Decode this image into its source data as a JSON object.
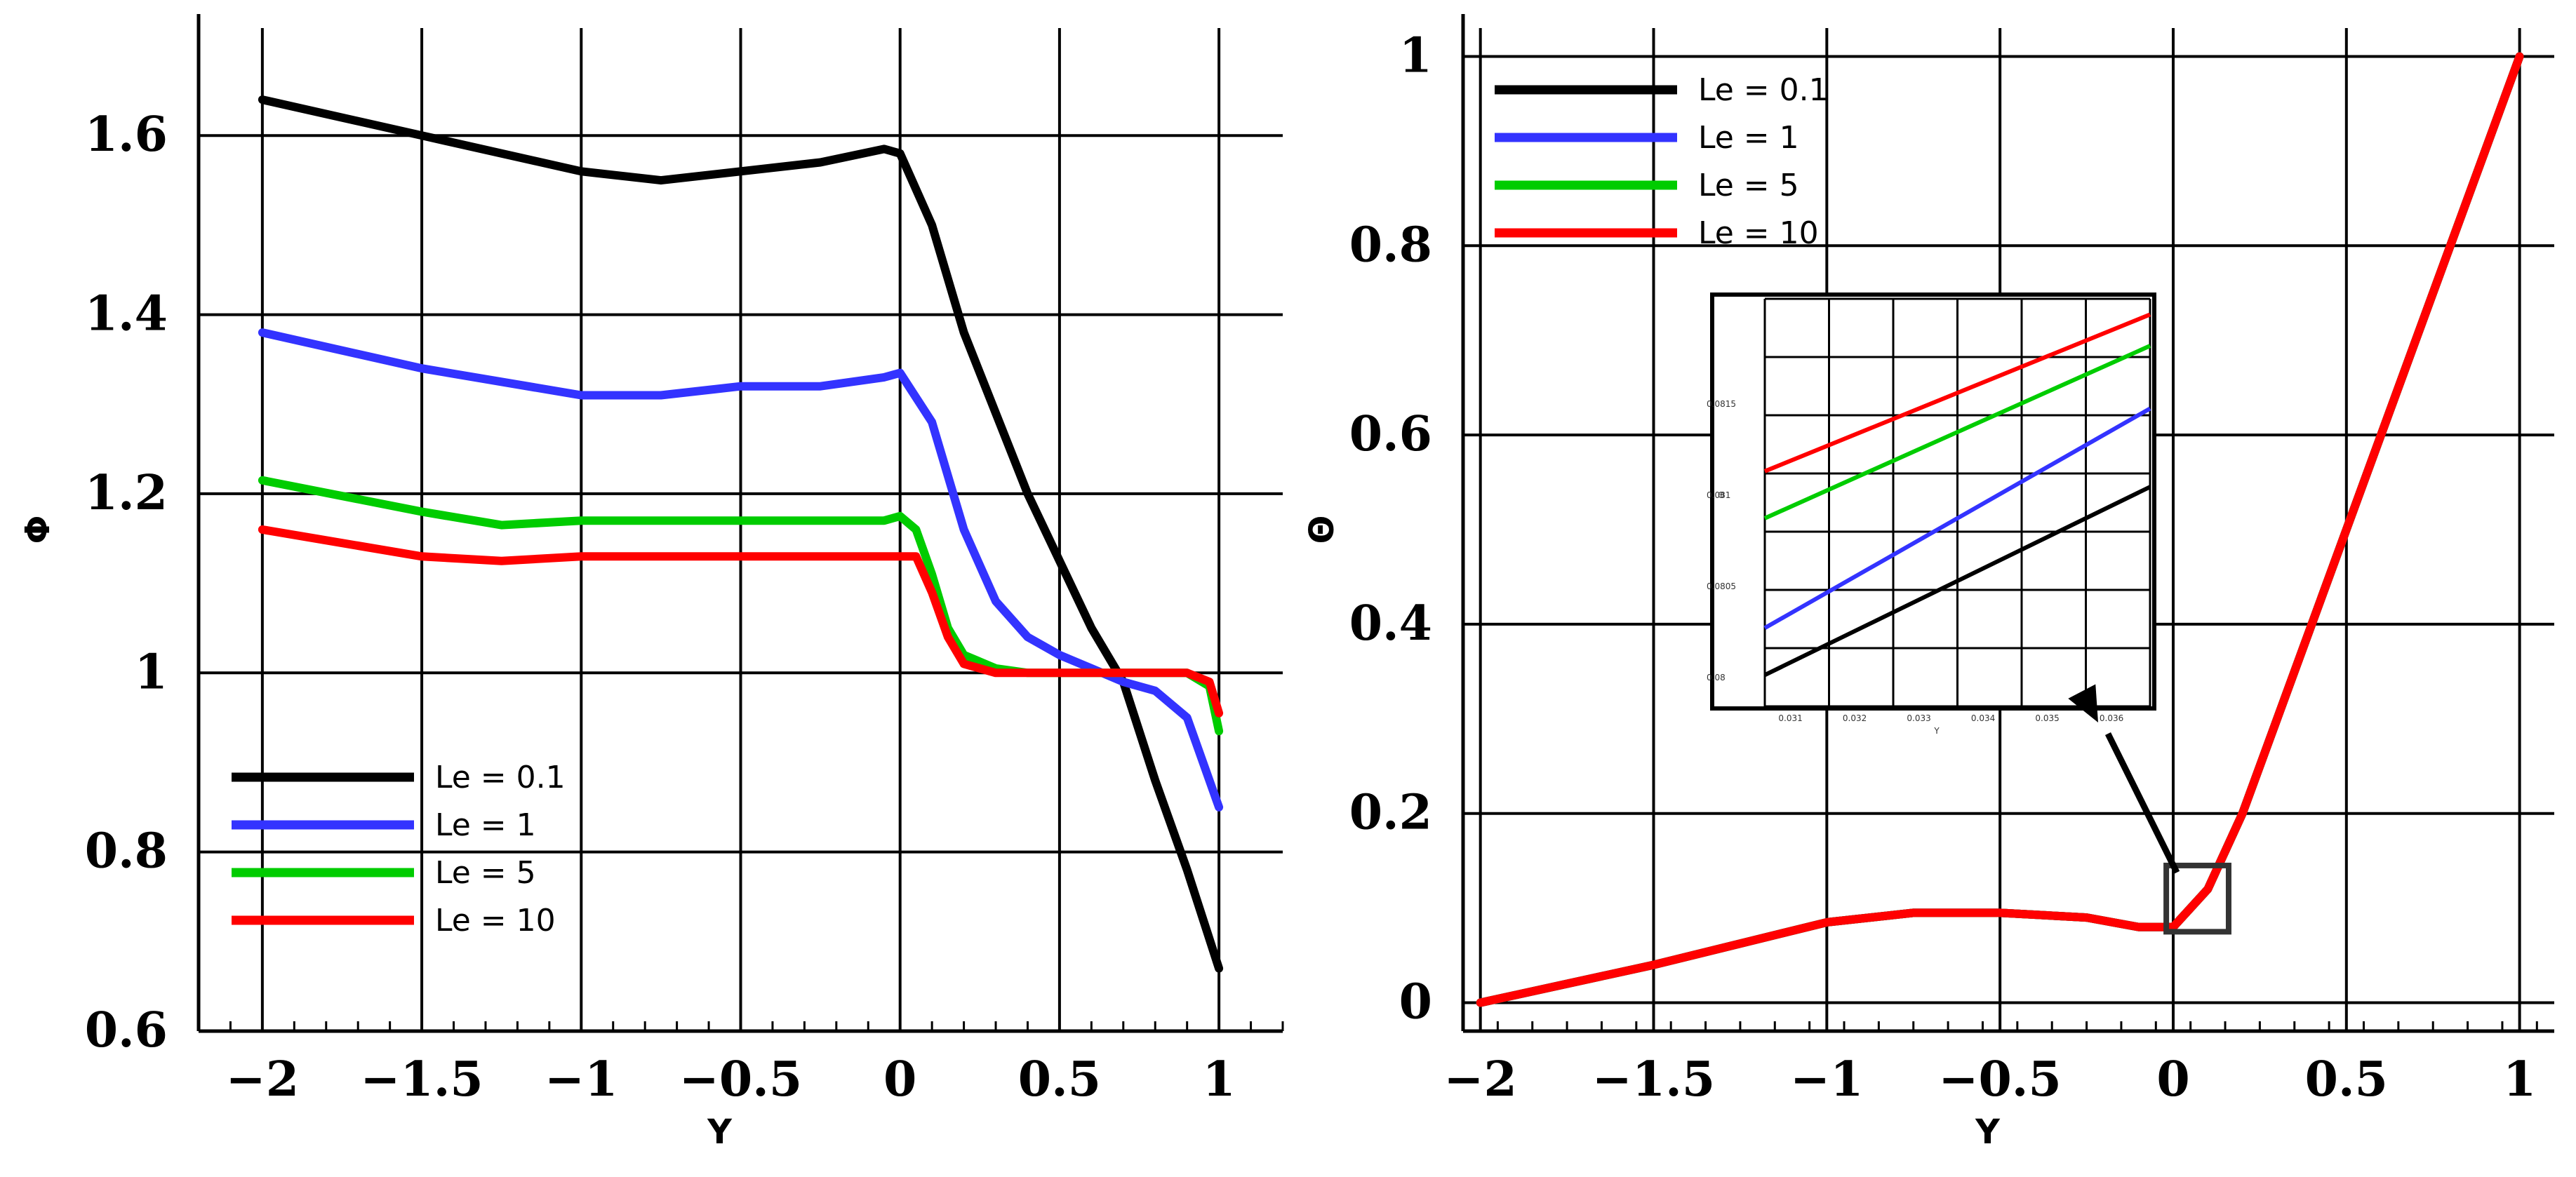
{
  "chart_data": [
    {
      "type": "line",
      "title": "",
      "xlabel": "Y",
      "ylabel": "Φ",
      "xlim": [
        -2.2,
        1.2
      ],
      "ylim": [
        0.6,
        1.72
      ],
      "x_ticks": [
        -2,
        -1.5,
        -1,
        -0.5,
        0,
        0.5,
        1
      ],
      "x_tick_labels": [
        "−2",
        "−1.5",
        "−1",
        "−0.5",
        "0",
        "0.5",
        "1"
      ],
      "y_ticks": [
        0.6,
        0.8,
        1,
        1.2,
        1.4,
        1.6
      ],
      "y_tick_labels": [
        "0.6",
        "0.8",
        "1",
        "1.2",
        "1.4",
        "1.6"
      ],
      "grid": true,
      "legend_position": "bottom-left",
      "series": [
        {
          "name": "Le = 0.1",
          "color": "#000000",
          "x": [
            -2,
            -1.5,
            -1,
            -0.75,
            -0.5,
            -0.25,
            -0.05,
            0,
            0.1,
            0.2,
            0.4,
            0.6,
            0.7,
            0.8,
            0.9,
            1
          ],
          "y": [
            1.64,
            1.6,
            1.56,
            1.55,
            1.56,
            1.57,
            1.585,
            1.58,
            1.5,
            1.38,
            1.2,
            1.05,
            0.99,
            0.88,
            0.78,
            0.67
          ]
        },
        {
          "name": "Le = 1",
          "color": "#3333ff",
          "x": [
            -2,
            -1.5,
            -1,
            -0.75,
            -0.5,
            -0.25,
            -0.05,
            0,
            0.1,
            0.2,
            0.3,
            0.4,
            0.5,
            0.6,
            0.7,
            0.8,
            0.9,
            1
          ],
          "y": [
            1.38,
            1.34,
            1.31,
            1.31,
            1.32,
            1.32,
            1.33,
            1.335,
            1.28,
            1.16,
            1.08,
            1.04,
            1.02,
            1.005,
            0.99,
            0.98,
            0.95,
            0.85
          ]
        },
        {
          "name": "Le = 5",
          "color": "#00cc00",
          "x": [
            -2,
            -1.5,
            -1.25,
            -1,
            -0.5,
            -0.25,
            -0.05,
            0,
            0.05,
            0.1,
            0.15,
            0.2,
            0.3,
            0.4,
            0.6,
            0.8,
            0.9,
            0.97,
            1
          ],
          "y": [
            1.215,
            1.18,
            1.165,
            1.17,
            1.17,
            1.17,
            1.17,
            1.175,
            1.16,
            1.11,
            1.05,
            1.02,
            1.005,
            1.0,
            1.0,
            1.0,
            1.0,
            0.985,
            0.935
          ]
        },
        {
          "name": "Le = 10",
          "color": "#ff0000",
          "x": [
            -2,
            -1.5,
            -1.25,
            -1,
            -0.5,
            -0.25,
            -0.05,
            0,
            0.05,
            0.1,
            0.15,
            0.2,
            0.3,
            0.4,
            0.6,
            0.8,
            0.9,
            0.97,
            1
          ],
          "y": [
            1.16,
            1.13,
            1.125,
            1.13,
            1.13,
            1.13,
            1.13,
            1.13,
            1.13,
            1.09,
            1.04,
            1.01,
            1.0,
            1.0,
            1.0,
            1.0,
            1.0,
            0.99,
            0.955
          ]
        }
      ]
    },
    {
      "type": "line",
      "title": "",
      "xlabel": "Y",
      "ylabel": "Θ",
      "xlim": [
        -2.05,
        1.1
      ],
      "ylim": [
        -0.03,
        1.03
      ],
      "x_ticks": [
        -2,
        -1.5,
        -1,
        -0.5,
        0,
        0.5,
        1
      ],
      "x_tick_labels": [
        "−2",
        "−1.5",
        "−1",
        "−0.5",
        "0",
        "0.5",
        "1"
      ],
      "y_ticks": [
        0,
        0.2,
        0.4,
        0.6,
        0.8,
        1
      ],
      "y_tick_labels": [
        "0",
        "0.2",
        "0.4",
        "0.6",
        "0.8",
        "1"
      ],
      "grid": true,
      "legend_position": "top-left",
      "series": [
        {
          "name": "Le = 0.1",
          "color": "#000000",
          "x": [
            -2,
            -1.5,
            -1,
            -0.75,
            -0.5,
            -0.25,
            -0.1,
            0,
            0.05,
            0.1,
            0.2,
            0.3,
            0.5,
            0.7,
            0.9,
            1
          ],
          "y": [
            0.0,
            0.04,
            0.085,
            0.095,
            0.095,
            0.09,
            0.08,
            0.08,
            0.1,
            0.12,
            0.2,
            0.3,
            0.5,
            0.7,
            0.9,
            1.0
          ]
        },
        {
          "name": "Le = 1",
          "color": "#3333ff",
          "x": [
            -2,
            -1.5,
            -1,
            -0.75,
            -0.5,
            -0.25,
            -0.1,
            0,
            0.05,
            0.1,
            0.2,
            0.3,
            0.5,
            0.7,
            0.9,
            1
          ],
          "y": [
            0.0,
            0.04,
            0.085,
            0.095,
            0.095,
            0.09,
            0.08,
            0.08,
            0.1,
            0.12,
            0.2,
            0.3,
            0.5,
            0.7,
            0.9,
            1.0
          ]
        },
        {
          "name": "Le = 5",
          "color": "#00cc00",
          "x": [
            -2,
            -1.5,
            -1,
            -0.75,
            -0.5,
            -0.25,
            -0.1,
            0,
            0.05,
            0.1,
            0.2,
            0.3,
            0.5,
            0.7,
            0.9,
            1
          ],
          "y": [
            0.0,
            0.04,
            0.085,
            0.095,
            0.095,
            0.09,
            0.08,
            0.08,
            0.1,
            0.12,
            0.2,
            0.3,
            0.5,
            0.7,
            0.9,
            1.0
          ]
        },
        {
          "name": "Le = 10",
          "color": "#ff0000",
          "x": [
            -2,
            -1.5,
            -1,
            -0.75,
            -0.5,
            -0.25,
            -0.1,
            0,
            0.05,
            0.1,
            0.2,
            0.3,
            0.5,
            0.7,
            0.9,
            1
          ],
          "y": [
            0.0,
            0.04,
            0.085,
            0.095,
            0.095,
            0.09,
            0.08,
            0.08,
            0.1,
            0.12,
            0.2,
            0.3,
            0.5,
            0.7,
            0.9,
            1.0
          ]
        }
      ],
      "zoom_box": {
        "x": [
          -0.02,
          0.16
        ],
        "y": [
          0.075,
          0.145
        ]
      },
      "inset": {
        "xlabel": "Y",
        "ylabel": "Θ",
        "x_tick_labels": [
          "0.031",
          "0.032",
          "0.033",
          "0.034",
          "0.035",
          "0.036"
        ],
        "y_tick_labels": [
          "0.08",
          "0.0805",
          "0.081",
          "0.0815"
        ],
        "series": [
          {
            "name": "Le = 0.1",
            "color": "#000000",
            "y0": 0.08,
            "y1": 0.0812
          },
          {
            "name": "Le = 1",
            "color": "#3333ff",
            "y0": 0.0803,
            "y1": 0.0817
          },
          {
            "name": "Le = 5",
            "color": "#00cc00",
            "y0": 0.081,
            "y1": 0.0821
          },
          {
            "name": "Le = 10",
            "color": "#ff0000",
            "y0": 0.0813,
            "y1": 0.0823
          }
        ]
      }
    }
  ]
}
